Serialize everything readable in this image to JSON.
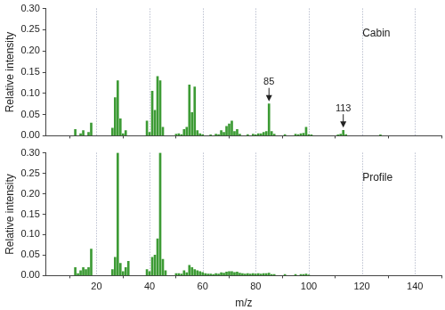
{
  "chart_data": [
    {
      "type": "bar",
      "title": "Cabin",
      "ylabel": "Relative intensity",
      "x": [
        12,
        14,
        15,
        17,
        18,
        26,
        27,
        28,
        29,
        30,
        31,
        39,
        40,
        41,
        42,
        43,
        44,
        45,
        50,
        51,
        52,
        53,
        54,
        55,
        56,
        57,
        58,
        59,
        60,
        63,
        65,
        66,
        67,
        68,
        69,
        70,
        71,
        72,
        73,
        74,
        77,
        79,
        80,
        81,
        82,
        83,
        84,
        85,
        86,
        87,
        91,
        95,
        96,
        97,
        98,
        99,
        100,
        101,
        111,
        112,
        113,
        114,
        127
      ],
      "values": [
        0.015,
        0.005,
        0.012,
        0.008,
        0.03,
        0.018,
        0.09,
        0.13,
        0.04,
        0.005,
        0.012,
        0.035,
        0.008,
        0.105,
        0.06,
        0.14,
        0.13,
        0.02,
        0.004,
        0.005,
        0.003,
        0.015,
        0.02,
        0.12,
        0.055,
        0.115,
        0.012,
        0.005,
        0.003,
        0.002,
        0.004,
        0.003,
        0.012,
        0.008,
        0.022,
        0.028,
        0.035,
        0.01,
        0.015,
        0.004,
        0.003,
        0.004,
        0.002,
        0.005,
        0.005,
        0.008,
        0.01,
        0.075,
        0.01,
        0.004,
        0.003,
        0.004,
        0.003,
        0.005,
        0.006,
        0.02,
        0.003,
        0.002,
        0.002,
        0.004,
        0.013,
        0.003,
        0.002
      ],
      "color": "#3d9b35",
      "xlim": [
        1,
        150
      ],
      "xticks": [
        20,
        40,
        60,
        80,
        100,
        120,
        140
      ],
      "ylim": [
        0,
        0.3
      ],
      "yticks": [
        {
          "value": 0,
          "label": "0.00"
        },
        0.05,
        {
          "value": 0.1,
          "label": "0.10"
        },
        0.15,
        {
          "value": 0.2,
          "label": "0.20"
        },
        0.25,
        {
          "value": 0.3,
          "label": "0.30"
        }
      ],
      "grid": true,
      "tick_labels": "y",
      "annotations": [
        {
          "text": "85",
          "x": 85,
          "y": 0.075
        },
        {
          "text": "113",
          "x": 113,
          "y": 0.013
        }
      ]
    },
    {
      "type": "bar",
      "title": "Profile",
      "ylabel": "Relative intensity",
      "xlabel": "m/z",
      "x": [
        12,
        13,
        14,
        15,
        16,
        17,
        18,
        26,
        27,
        28,
        29,
        30,
        31,
        32,
        39,
        40,
        41,
        42,
        43,
        44,
        45,
        46,
        50,
        51,
        52,
        53,
        54,
        55,
        56,
        57,
        58,
        59,
        60,
        61,
        62,
        63,
        64,
        65,
        66,
        67,
        68,
        69,
        70,
        71,
        72,
        73,
        74,
        75,
        76,
        77,
        78,
        79,
        80,
        81,
        82,
        83,
        84,
        85,
        86,
        87,
        91,
        95,
        97,
        98,
        99,
        100
      ],
      "values": [
        0.02,
        0.005,
        0.012,
        0.02,
        0.015,
        0.02,
        0.065,
        0.015,
        0.045,
        0.3,
        0.03,
        0.01,
        0.02,
        0.035,
        0.015,
        0.01,
        0.045,
        0.05,
        0.09,
        0.3,
        0.04,
        0.012,
        0.005,
        0.005,
        0.004,
        0.012,
        0.007,
        0.025,
        0.02,
        0.015,
        0.012,
        0.01,
        0.008,
        0.005,
        0.004,
        0.004,
        0.003,
        0.005,
        0.004,
        0.007,
        0.006,
        0.009,
        0.01,
        0.01,
        0.008,
        0.009,
        0.006,
        0.005,
        0.004,
        0.005,
        0.004,
        0.005,
        0.004,
        0.005,
        0.004,
        0.005,
        0.005,
        0.006,
        0.003,
        0.003,
        0.003,
        0.003,
        0.003,
        0.003,
        0.004,
        0.002
      ],
      "color": "#3d9b35",
      "xlim": [
        1,
        150
      ],
      "xticks": [
        20,
        40,
        60,
        80,
        100,
        120,
        140
      ],
      "ylim": [
        0,
        0.3
      ],
      "yticks": [
        {
          "value": 0,
          "label": "0.00"
        },
        0.05,
        {
          "value": 0.1,
          "label": "0.10"
        },
        0.15,
        {
          "value": 0.2,
          "label": "0.20"
        },
        0.25,
        {
          "value": 0.3,
          "label": "0.30"
        }
      ],
      "grid": true
    }
  ]
}
